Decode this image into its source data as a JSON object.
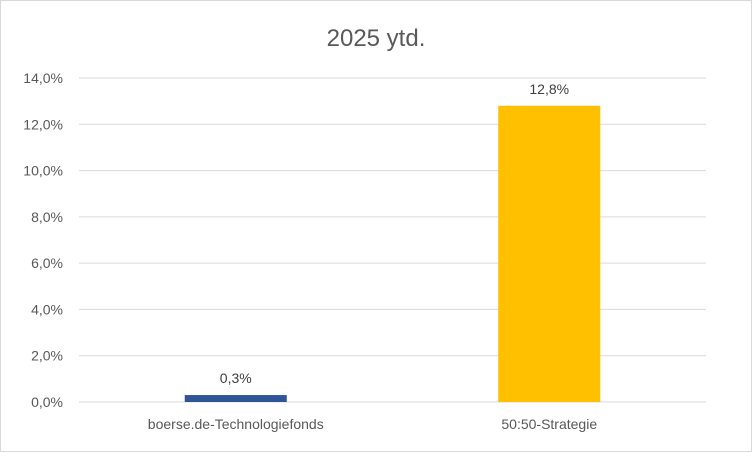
{
  "chart_data": {
    "type": "bar",
    "title": "2025 ytd.",
    "categories": [
      "boerse.de-Technologiefonds",
      "50:50-Strategie"
    ],
    "values": [
      0.3,
      12.8
    ],
    "data_labels": [
      "0,3%",
      "12,8%"
    ],
    "colors": [
      "#2f5597",
      "#ffc000"
    ],
    "ylim": [
      0,
      14
    ],
    "y_ticks": [
      0,
      2,
      4,
      6,
      8,
      10,
      12,
      14
    ],
    "y_tick_labels": [
      "0,0%",
      "2,0%",
      "4,0%",
      "6,0%",
      "8,0%",
      "10,0%",
      "12,0%",
      "14,0%"
    ],
    "xlabel": "",
    "ylabel": "",
    "grid": true,
    "legend": "none"
  }
}
